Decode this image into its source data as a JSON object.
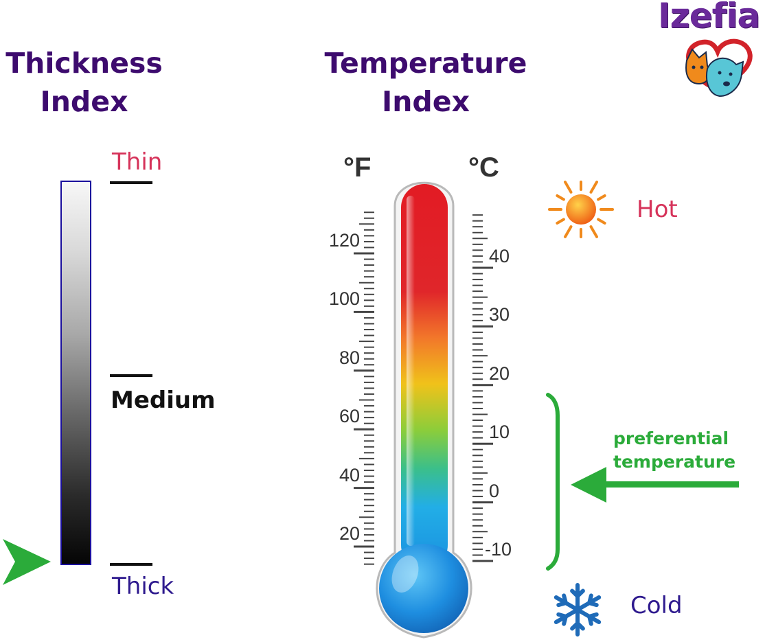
{
  "brand": {
    "name": "Izefia"
  },
  "thickness": {
    "title_line1": "Thickness",
    "title_line2": "Index",
    "thin_label": "Thin",
    "medium_label": "Medium",
    "thick_label": "Thick",
    "indicator_level": "Thick"
  },
  "temperature": {
    "title_line1": "Temperature",
    "title_line2": "Index",
    "fahrenheit_unit": "°F",
    "celsius_unit": "°C",
    "fahrenheit_ticks": [
      "120",
      "100",
      "80",
      "60",
      "40",
      "20"
    ],
    "celsius_ticks": [
      "40",
      "30",
      "20",
      "10",
      "0",
      "-10"
    ],
    "hot_label": "Hot",
    "cold_label": "Cold",
    "preferential_line1": "preferential",
    "preferential_line2": "temperature",
    "preferential_range_celsius": [
      -13,
      15
    ]
  },
  "colors": {
    "heading": "#3d0b6e",
    "thin": "#d6335a",
    "thick": "#2e1a8e",
    "medium": "#111111",
    "hot": "#d6335a",
    "cold": "#2e1a8e",
    "preferential": "#2bab3a",
    "snowflake": "#1f6bb8",
    "sun": "#f08a1c"
  }
}
